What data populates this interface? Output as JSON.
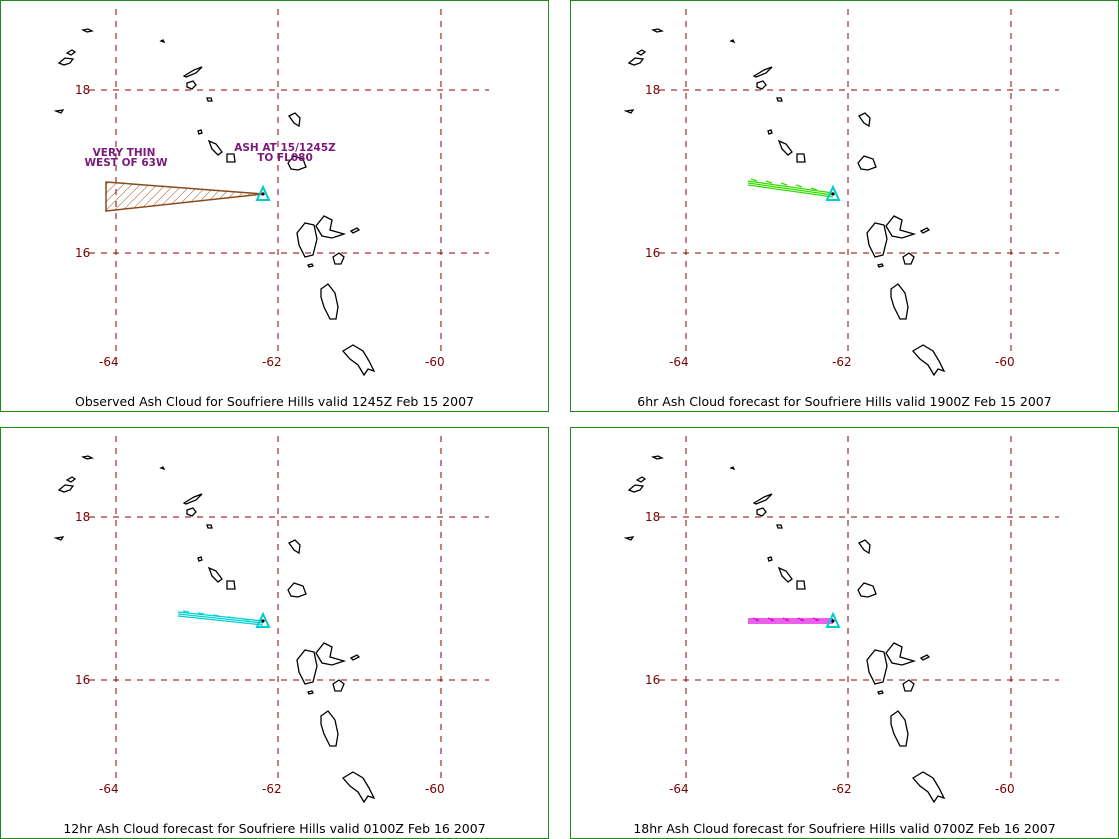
{
  "map_labels": {
    "lat_18": "18",
    "lat_16": "16",
    "lon_64": "-64",
    "lon_62": "-62",
    "lon_60": "-60"
  },
  "panels": [
    {
      "caption": "Observed Ash Cloud for Soufriere  Hills valid 1245Z Feb 15 2007",
      "plume_color": "#8a4a1a",
      "annotations": {
        "left_line1": "VERY THIN",
        "left_line2": "WEST OF 63W",
        "right_line1": "ASH AT 15/1245Z",
        "right_line2": "TO FL080"
      }
    },
    {
      "caption": "6hr Ash Cloud forecast for Soufriere  Hills valid 1900Z Feb 15 2007",
      "plume_color": "#33dd00"
    },
    {
      "caption": "12hr Ash Cloud forecast for Soufriere  Hills valid 0100Z Feb 16 2007",
      "plume_color": "#00d0d0"
    },
    {
      "caption": "18hr Ash Cloud forecast for Soufriere  Hills valid 0700Z Feb 16 2007",
      "plume_color": "#dd00dd"
    }
  ],
  "colors": {
    "grid": "#8b0000",
    "panel_border": "#1f8a1f",
    "island_outline": "#000000",
    "volcano_marker": "#00cccc"
  }
}
